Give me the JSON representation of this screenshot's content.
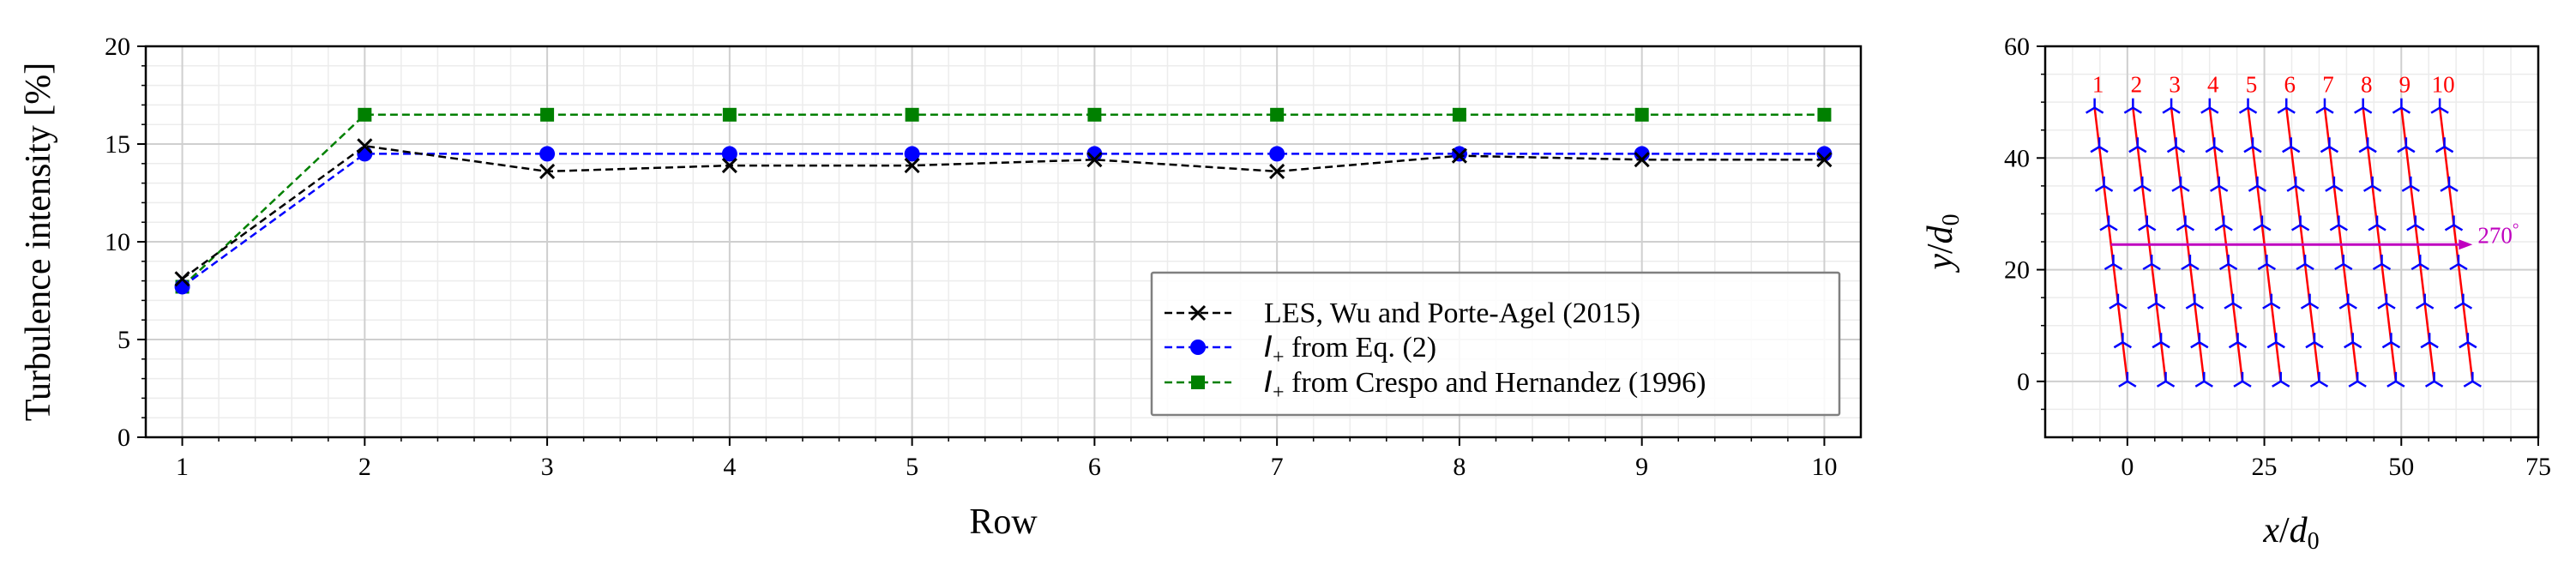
{
  "chart_data": [
    {
      "type": "line",
      "xlabel": "Row",
      "ylabel": "Turbulence intensity [%]",
      "xlim": [
        0.8,
        10.2
      ],
      "ylim": [
        0,
        20
      ],
      "xticks": [
        1,
        2,
        3,
        4,
        5,
        6,
        7,
        8,
        9,
        10
      ],
      "yticks": [
        0,
        5,
        10,
        15,
        20
      ],
      "grid": true,
      "legend_position": "lower-right",
      "x": [
        1,
        2,
        3,
        4,
        5,
        6,
        7,
        8,
        9,
        10
      ],
      "series": [
        {
          "name": "LES, Wu and Porte-Agel (2015)",
          "color": "#000000",
          "marker": "x",
          "linestyle": "dashed",
          "values": [
            8.1,
            14.9,
            13.6,
            13.9,
            13.9,
            14.2,
            13.6,
            14.4,
            14.2,
            14.2
          ]
        },
        {
          "name_symbol": "I",
          "name_subscript": "+",
          "name_rest": " from Eq. (2)",
          "color": "#0000ff",
          "marker": "circle",
          "linestyle": "dashed",
          "values": [
            7.7,
            14.5,
            14.5,
            14.5,
            14.5,
            14.5,
            14.5,
            14.5,
            14.5,
            14.5
          ]
        },
        {
          "name_symbol": "I",
          "name_subscript": "+",
          "name_rest": " from Crespo and Hernandez (1996)",
          "color": "#008000",
          "marker": "square",
          "linestyle": "dashed",
          "values": [
            7.7,
            16.5,
            16.5,
            16.5,
            16.5,
            16.5,
            16.5,
            16.5,
            16.5,
            16.5
          ]
        }
      ]
    },
    {
      "type": "scatter",
      "xlabel_symbol": "x",
      "xlabel_sub": "0",
      "ylabel_symbol": "y",
      "ylabel_sub": "0",
      "xlim": [
        -15,
        75
      ],
      "ylim": [
        -10,
        60
      ],
      "xticks": [
        0,
        25,
        50,
        75
      ],
      "yticks": [
        0,
        20,
        40,
        60
      ],
      "grid": true,
      "turbine_color": "#0000ff",
      "row_line_color": "#ff0000",
      "wind_arrow": {
        "label": "270",
        "degree_symbol": "°",
        "color": "#bf00bf",
        "from": [
          -3,
          24.5
        ],
        "to": [
          63,
          24.5
        ]
      },
      "row_labels": [
        "1",
        "2",
        "3",
        "4",
        "5",
        "6",
        "7",
        "8",
        "9",
        "10"
      ],
      "turbine_y": [
        0,
        7,
        14,
        21,
        28,
        35,
        42,
        49
      ],
      "row_x_bottom": [
        0,
        7,
        14,
        21,
        28,
        35,
        42,
        49,
        56,
        63
      ],
      "row_x_shift_per_y": -0.122
    }
  ]
}
